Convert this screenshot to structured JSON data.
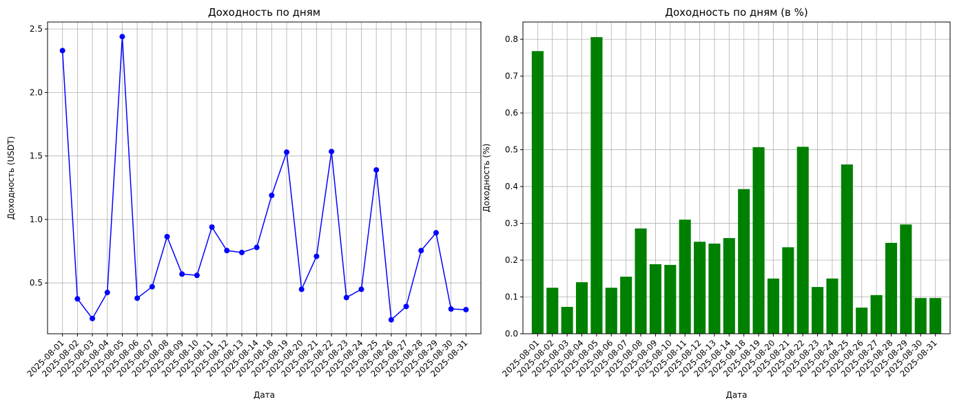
{
  "chart_data": [
    {
      "type": "line",
      "title": "Доходность по дням",
      "x_label": "Дата",
      "y_label": "Доходность (USDT)",
      "color": "#0000ff",
      "grid": true,
      "categories": [
        "2025-08-01",
        "2025-08-02",
        "2025-08-03",
        "2025-08-04",
        "2025-08-05",
        "2025-08-06",
        "2025-08-07",
        "2025-08-08",
        "2025-08-09",
        "2025-08-10",
        "2025-08-11",
        "2025-08-12",
        "2025-08-13",
        "2025-08-14",
        "2025-08-18",
        "2025-08-19",
        "2025-08-20",
        "2025-08-21",
        "2025-08-22",
        "2025-08-23",
        "2025-08-24",
        "2025-08-25",
        "2025-08-26",
        "2025-08-27",
        "2025-08-28",
        "2025-08-29",
        "2025-08-30",
        "2025-08-31"
      ],
      "values": [
        2.33,
        0.375,
        0.22,
        0.425,
        2.44,
        0.38,
        0.47,
        0.865,
        0.57,
        0.56,
        0.94,
        0.755,
        0.74,
        0.78,
        1.19,
        1.53,
        0.45,
        0.71,
        1.535,
        0.385,
        0.45,
        1.39,
        0.21,
        0.315,
        0.755,
        0.895,
        0.295,
        0.29
      ],
      "ylim": [
        0.1,
        2.555
      ],
      "yticks": [
        0.5,
        {
          "value": 1.0,
          "label": "1.0"
        },
        1.5,
        {
          "value": 2.0,
          "label": "2.0"
        },
        2.5
      ]
    },
    {
      "type": "bar",
      "title": "Доходность по дням (в %)",
      "x_label": "Дата",
      "y_label": "Доходность (%)",
      "color": "#008000",
      "grid": true,
      "categories": [
        "2025-08-01",
        "2025-08-02",
        "2025-08-03",
        "2025-08-04",
        "2025-08-05",
        "2025-08-06",
        "2025-08-07",
        "2025-08-08",
        "2025-08-09",
        "2025-08-10",
        "2025-08-11",
        "2025-08-12",
        "2025-08-13",
        "2025-08-14",
        "2025-08-18",
        "2025-08-19",
        "2025-08-20",
        "2025-08-21",
        "2025-08-22",
        "2025-08-23",
        "2025-08-24",
        "2025-08-25",
        "2025-08-26",
        "2025-08-27",
        "2025-08-28",
        "2025-08-29",
        "2025-08-30",
        "2025-08-31"
      ],
      "values": [
        0.768,
        0.125,
        0.073,
        0.14,
        0.806,
        0.125,
        0.155,
        0.286,
        0.189,
        0.187,
        0.31,
        0.25,
        0.245,
        0.26,
        0.393,
        0.507,
        0.15,
        0.235,
        0.508,
        0.127,
        0.15,
        0.46,
        0.071,
        0.105,
        0.247,
        0.297,
        0.097,
        0.097
      ],
      "ylim": [
        0,
        0.847
      ],
      "yticks": [
        {
          "value": 0.0,
          "label": "0.0"
        },
        0.1,
        0.2,
        0.3,
        0.4,
        0.5,
        0.6,
        0.7,
        0.8
      ]
    }
  ]
}
